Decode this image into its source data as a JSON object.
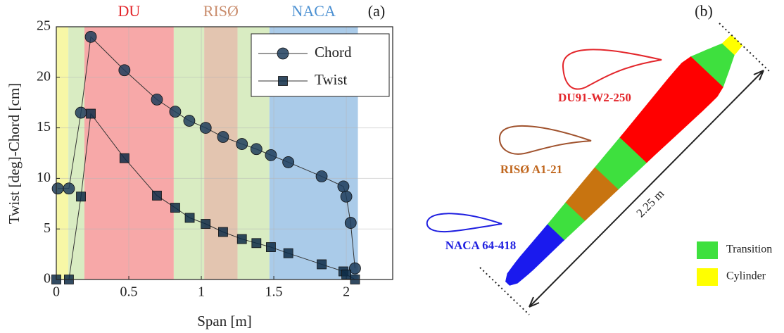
{
  "chart_data": {
    "type": "line",
    "title": "(a)",
    "xlabel": "Span [m]",
    "ylabel": "Twist [deg]-Chord [cm]",
    "xlim": [
      0,
      2.32
    ],
    "ylim": [
      0,
      25
    ],
    "xticks": [
      0,
      0.5,
      1,
      1.5,
      2
    ],
    "yticks": [
      0,
      5,
      10,
      15,
      20,
      25
    ],
    "grid": true,
    "legend": "upper right",
    "regions": [
      {
        "start": 0,
        "end": 0.083,
        "color": "#f7f7a6"
      },
      {
        "start": 0.083,
        "end": 0.194,
        "color": "#d9ecc2"
      },
      {
        "start": 0.194,
        "end": 0.81,
        "color": "#f7a8a8",
        "label": "DU",
        "label_color": "#e3262b"
      },
      {
        "start": 0.81,
        "end": 1.02,
        "color": "#d9ecc2"
      },
      {
        "start": 1.02,
        "end": 1.25,
        "color": "#e3c5b0",
        "label": "RISØ",
        "label_color": "#c98c6c"
      },
      {
        "start": 1.25,
        "end": 1.47,
        "color": "#d9ecc2"
      },
      {
        "start": 1.47,
        "end": 2.08,
        "color": "#aacbe9",
        "label": "NACA",
        "label_color": "#4b90d2"
      }
    ],
    "series": [
      {
        "name": "Chord",
        "marker": "circle",
        "color": "#1f3d5c",
        "x": [
          0.01,
          0.087,
          0.17,
          0.238,
          0.47,
          0.694,
          0.82,
          0.917,
          1.03,
          1.15,
          1.28,
          1.38,
          1.48,
          1.6,
          1.83,
          1.98,
          2.0,
          2.03,
          2.06
        ],
        "values": [
          9,
          9,
          16.5,
          24,
          20.7,
          17.8,
          16.6,
          15.7,
          15.0,
          14.1,
          13.4,
          12.9,
          12.3,
          11.6,
          10.2,
          9.2,
          8.2,
          5.6,
          1.1
        ]
      },
      {
        "name": "Twist",
        "marker": "square",
        "color": "#0e2c47",
        "x": [
          0,
          0.087,
          0.17,
          0.238,
          0.47,
          0.694,
          0.82,
          0.92,
          1.03,
          1.15,
          1.28,
          1.38,
          1.48,
          1.6,
          1.83,
          1.98,
          2.0,
          2.06
        ],
        "values": [
          0,
          0,
          8.2,
          16.4,
          12.0,
          8.3,
          7.1,
          6.1,
          5.5,
          4.7,
          4.0,
          3.6,
          3.2,
          2.6,
          1.5,
          0.8,
          0.5,
          0
        ]
      }
    ]
  },
  "panel_b": {
    "title": "(b)",
    "airfoils": {
      "du": "DU91-W2-250",
      "riso": "RISØ A1-21",
      "naca": "NACA 64-418"
    },
    "dimension": "2.25 m",
    "legend": [
      {
        "label": "Transition",
        "color": "#3ee03e"
      },
      {
        "label": "Cylinder",
        "color": "#ffff00"
      }
    ]
  }
}
